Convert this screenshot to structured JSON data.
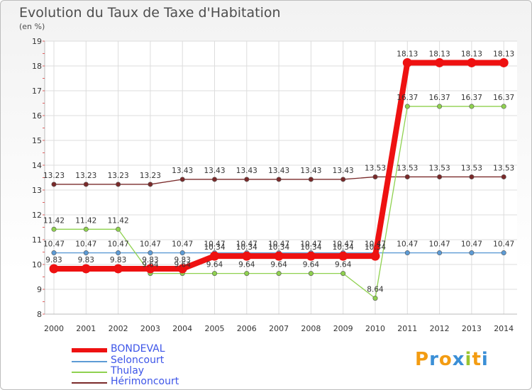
{
  "header": {
    "title": "Evolution du Taux de Taxe d'Habitation",
    "unit": "(en %)"
  },
  "logo": {
    "letters": [
      "P",
      "r",
      "o",
      "x",
      "i",
      "t",
      "i"
    ],
    "colors": [
      "#f39c12",
      "#3b8fd6",
      "#f39c12",
      "#3b8fd6",
      "#9ac531",
      "#f39c12",
      "#3b8fd6"
    ]
  },
  "chart_data": {
    "type": "line",
    "title": "Evolution du Taux de Taxe d'Habitation",
    "ylabel": "(en %)",
    "xlabel": "",
    "x": [
      "2000",
      "2001",
      "2002",
      "2003",
      "2004",
      "2005",
      "2006",
      "2007",
      "2008",
      "2009",
      "2010",
      "2011",
      "2012",
      "2013",
      "2014"
    ],
    "ylim": [
      8,
      19
    ],
    "yticks": [
      8,
      9,
      10,
      11,
      12,
      13,
      14,
      15,
      16,
      17,
      18,
      19
    ],
    "grid": true,
    "legend_position": "bottom-left",
    "series": [
      {
        "name": "BONDEVAL",
        "color": "#ee1111",
        "values": [
          9.83,
          9.83,
          9.83,
          9.83,
          9.83,
          10.34,
          10.34,
          10.34,
          10.34,
          10.34,
          10.34,
          18.13,
          18.13,
          18.13,
          18.13
        ],
        "labels": [
          "9.83",
          "9.83",
          "9.83",
          "9.83",
          "9.83",
          "10.34",
          "10.34",
          "10.34",
          "10.34",
          "10.34",
          "10.34",
          "18.13",
          "18.13",
          "18.13",
          "18.13"
        ]
      },
      {
        "name": "Seloncourt",
        "color": "#5d9bd5",
        "values": [
          10.47,
          10.47,
          10.47,
          10.47,
          10.47,
          10.47,
          10.47,
          10.47,
          10.47,
          10.47,
          10.47,
          10.47,
          10.47,
          10.47,
          10.47
        ],
        "labels": [
          "10.47",
          "10.47",
          "10.47",
          "10.47",
          "10.47",
          "10.47",
          "10.47",
          "10.47",
          "10.47",
          "10.47",
          "10.47",
          "10.47",
          "10.47",
          "10.47",
          "10.47"
        ]
      },
      {
        "name": "Thulay",
        "color": "#8fd14f",
        "values": [
          11.42,
          11.42,
          11.42,
          9.64,
          9.64,
          9.64,
          9.64,
          9.64,
          9.64,
          9.64,
          8.64,
          16.37,
          16.37,
          16.37,
          16.37
        ],
        "labels": [
          "11.42",
          "11.42",
          "11.42",
          "9.64",
          "9.64",
          "9.64",
          "9.64",
          "9.64",
          "9.64",
          "9.64",
          "8.64",
          "16.37",
          "16.37",
          "16.37",
          "16.37"
        ]
      },
      {
        "name": "Hérimoncourt",
        "color": "#7a2a2a",
        "values": [
          13.23,
          13.23,
          13.23,
          13.23,
          13.43,
          13.43,
          13.43,
          13.43,
          13.43,
          13.43,
          13.53,
          13.53,
          13.53,
          13.53,
          13.53
        ],
        "labels": [
          "13.23",
          "13.23",
          "13.23",
          "13.23",
          "13.43",
          "13.43",
          "13.43",
          "13.43",
          "13.43",
          "13.43",
          "13.53",
          "13.53",
          "13.53",
          "13.53",
          "13.53"
        ]
      }
    ]
  }
}
